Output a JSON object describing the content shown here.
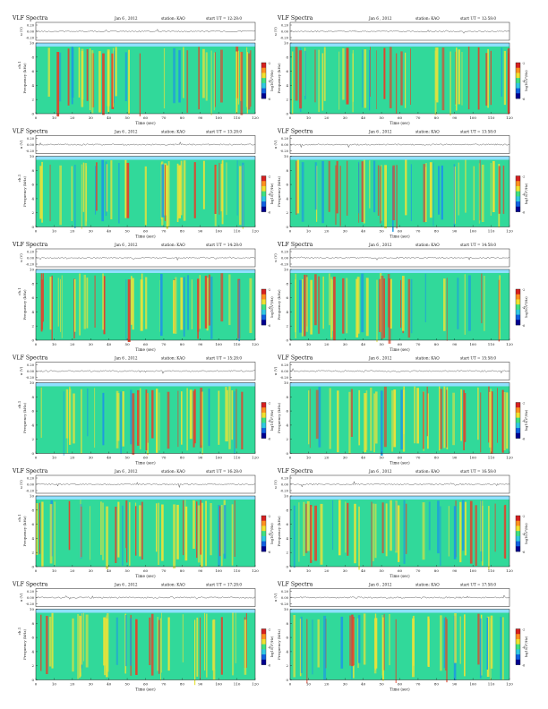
{
  "chart_data": [
    {
      "type": "heatmap",
      "title": "VLF Spectra",
      "date": "Jan 6 , 2012",
      "station": "station: KAO",
      "start": "start UT = 12:28:0",
      "top_ylabel": "u (V)",
      "top_ticks": [
        "0.20",
        "0.00",
        "-0.20"
      ],
      "xlabel": "Time (sec)",
      "ylabel": "Frequency (kHz)",
      "yticks": [
        "0",
        "2",
        "4",
        "6",
        "8",
        "10"
      ],
      "xticks": [
        "0",
        "10",
        "20",
        "30",
        "40",
        "50",
        "60",
        "70",
        "80",
        "90",
        "100",
        "110",
        "120"
      ],
      "xlim": [
        0,
        120
      ],
      "ylim": [
        0,
        10
      ],
      "colorbar_label": "log10(V²/Hz)",
      "colorbar_ticks": [
        "-2",
        "-4",
        "-6"
      ],
      "side_label": "ch.1"
    },
    {
      "type": "heatmap",
      "title": "VLF Spectra",
      "date": "Jan 6 , 2012",
      "station": "station: KAO",
      "start": "start UT = 12:58:0",
      "top_ylabel": "u (V)",
      "top_ticks": [
        "0.20",
        "0.00",
        "-0.20"
      ],
      "xlabel": "Time (sec)",
      "ylabel": "Frequency (kHz)",
      "yticks": [
        "0",
        "2",
        "4",
        "6",
        "8",
        "10"
      ],
      "xticks": [
        "0",
        "10",
        "20",
        "30",
        "40",
        "50",
        "60",
        "70",
        "80",
        "90",
        "100",
        "110",
        "120"
      ],
      "xlim": [
        0,
        120
      ],
      "ylim": [
        0,
        10
      ],
      "colorbar_label": "log10(V²/Hz)",
      "colorbar_ticks": [
        "-2",
        "-4",
        "-6"
      ],
      "side_label": ""
    },
    {
      "type": "heatmap",
      "title": "VLF Spectra",
      "date": "Jan 6 , 2012",
      "station": "station: KAO",
      "start": "start UT = 13:28:0",
      "top_ylabel": "u (V)",
      "top_ticks": [
        "0.20",
        "0.00",
        "-0.20"
      ],
      "xlabel": "Time (sec)",
      "ylabel": "Frequency (kHz)",
      "yticks": [
        "0",
        "2",
        "4",
        "6",
        "8",
        "10"
      ],
      "xticks": [
        "0",
        "10",
        "20",
        "30",
        "40",
        "50",
        "60",
        "70",
        "80",
        "90",
        "100",
        "110",
        "120"
      ],
      "xlim": [
        0,
        120
      ],
      "ylim": [
        0,
        10
      ],
      "colorbar_label": "log10(V²/Hz)",
      "colorbar_ticks": [
        "-2",
        "-4",
        "-6"
      ],
      "side_label": "ch.1"
    },
    {
      "type": "heatmap",
      "title": "VLF Spectra",
      "date": "Jan 6 , 2012",
      "station": "station: KAO",
      "start": "start UT = 13:58:0",
      "top_ylabel": "u (V)",
      "top_ticks": [
        "0.20",
        "0.00",
        "-0.20"
      ],
      "xlabel": "Time (sec)",
      "ylabel": "Frequency (kHz)",
      "yticks": [
        "0",
        "2",
        "4",
        "6",
        "8",
        "10"
      ],
      "xticks": [
        "0",
        "10",
        "20",
        "30",
        "40",
        "50",
        "60",
        "70",
        "80",
        "90",
        "100",
        "110",
        "120"
      ],
      "xlim": [
        0,
        120
      ],
      "ylim": [
        0,
        10
      ],
      "colorbar_label": "log10(V²/Hz)",
      "colorbar_ticks": [
        "-2",
        "-4",
        "-6"
      ],
      "side_label": ""
    },
    {
      "type": "heatmap",
      "title": "VLF Spectra",
      "date": "Jan 6 , 2012",
      "station": "station: KAO",
      "start": "start UT = 14:28:0",
      "top_ylabel": "u (V)",
      "top_ticks": [
        "0.20",
        "0.00",
        "-0.20"
      ],
      "xlabel": "Time (sec)",
      "ylabel": "Frequency (kHz)",
      "yticks": [
        "0",
        "2",
        "4",
        "6",
        "8",
        "10"
      ],
      "xticks": [
        "0",
        "10",
        "20",
        "30",
        "40",
        "50",
        "60",
        "70",
        "80",
        "90",
        "100",
        "110",
        "120"
      ],
      "xlim": [
        0,
        120
      ],
      "ylim": [
        0,
        10
      ],
      "colorbar_label": "log10(V²/Hz)",
      "colorbar_ticks": [
        "-2",
        "-4",
        "-6"
      ],
      "side_label": "ch.1"
    },
    {
      "type": "heatmap",
      "title": "VLF Spectra",
      "date": "Jan 6 , 2012",
      "station": "station: KAO",
      "start": "start UT = 14:58:0",
      "top_ylabel": "u (V)",
      "top_ticks": [
        "0.20",
        "0.00",
        "-0.20"
      ],
      "xlabel": "Time (sec)",
      "ylabel": "Frequency (kHz)",
      "yticks": [
        "0",
        "2",
        "4",
        "6",
        "8",
        "10"
      ],
      "xticks": [
        "0",
        "10",
        "20",
        "30",
        "40",
        "50",
        "60",
        "70",
        "80",
        "90",
        "100",
        "110",
        "120"
      ],
      "xlim": [
        0,
        120
      ],
      "ylim": [
        0,
        10
      ],
      "colorbar_label": "log10(V²/Hz)",
      "colorbar_ticks": [
        "-2",
        "-4",
        "-6"
      ],
      "side_label": ""
    },
    {
      "type": "heatmap",
      "title": "VLF Spectra",
      "date": "Jan 6 , 2012",
      "station": "station: KAO",
      "start": "start UT = 15:28:0",
      "top_ylabel": "u (V)",
      "top_ticks": [
        "0.20",
        "0.00",
        "-0.20"
      ],
      "xlabel": "Time (sec)",
      "ylabel": "Frequency (kHz)",
      "yticks": [
        "0",
        "2",
        "4",
        "6",
        "8",
        "10"
      ],
      "xticks": [
        "0",
        "10",
        "20",
        "30",
        "40",
        "50",
        "60",
        "70",
        "80",
        "90",
        "100",
        "110",
        "120"
      ],
      "xlim": [
        0,
        120
      ],
      "ylim": [
        0,
        10
      ],
      "colorbar_label": "log10(V²/Hz)",
      "colorbar_ticks": [
        "-2",
        "-4",
        "-6"
      ],
      "side_label": "ch.1"
    },
    {
      "type": "heatmap",
      "title": "VLF Spectra",
      "date": "Jan 6 , 2012",
      "station": "station: KAO",
      "start": "start UT = 15:58:0",
      "top_ylabel": "u (V)",
      "top_ticks": [
        "0.20",
        "0.00",
        "-0.20"
      ],
      "xlabel": "Time (sec)",
      "ylabel": "Frequency (kHz)",
      "yticks": [
        "0",
        "2",
        "4",
        "6",
        "8",
        "10"
      ],
      "xticks": [
        "0",
        "10",
        "20",
        "30",
        "40",
        "50",
        "60",
        "70",
        "80",
        "90",
        "100",
        "110",
        "120"
      ],
      "xlim": [
        0,
        120
      ],
      "ylim": [
        0,
        10
      ],
      "colorbar_label": "log10(V²/Hz)",
      "colorbar_ticks": [
        "-2",
        "-4",
        "-6"
      ],
      "side_label": ""
    },
    {
      "type": "heatmap",
      "title": "VLF Spectra",
      "date": "Jan 6 , 2012",
      "station": "station: KAO",
      "start": "start UT = 16:28:0",
      "top_ylabel": "u (V)",
      "top_ticks": [
        "0.20",
        "0.00",
        "-0.20"
      ],
      "xlabel": "Time (sec)",
      "ylabel": "Frequency (kHz)",
      "yticks": [
        "0",
        "2",
        "4",
        "6",
        "8",
        "10"
      ],
      "xticks": [
        "0",
        "10",
        "20",
        "30",
        "40",
        "50",
        "60",
        "70",
        "80",
        "90",
        "100",
        "110",
        "120"
      ],
      "xlim": [
        0,
        120
      ],
      "ylim": [
        0,
        10
      ],
      "colorbar_label": "log10(V²/Hz)",
      "colorbar_ticks": [
        "-2",
        "-4",
        "-6"
      ],
      "side_label": "ch.1"
    },
    {
      "type": "heatmap",
      "title": "VLF Spectra",
      "date": "Jan 6 , 2012",
      "station": "station: KAO",
      "start": "start UT = 16:58:0",
      "top_ylabel": "u (V)",
      "top_ticks": [
        "0.20",
        "0.00",
        "-0.20"
      ],
      "xlabel": "Time (sec)",
      "ylabel": "Frequency (kHz)",
      "yticks": [
        "0",
        "2",
        "4",
        "6",
        "8",
        "10"
      ],
      "xticks": [
        "0",
        "10",
        "20",
        "30",
        "40",
        "50",
        "60",
        "70",
        "80",
        "90",
        "100",
        "110",
        "120"
      ],
      "xlim": [
        0,
        120
      ],
      "ylim": [
        0,
        10
      ],
      "colorbar_label": "log10(V²/Hz)",
      "colorbar_ticks": [
        "-2",
        "-4",
        "-6"
      ],
      "side_label": ""
    },
    {
      "type": "heatmap",
      "title": "VLF Spectra",
      "date": "Jan 6 , 2012",
      "station": "station: KAO",
      "start": "start UT = 17:28:0",
      "top_ylabel": "u (V)",
      "top_ticks": [
        "0.20",
        "0.00",
        "-0.20"
      ],
      "xlabel": "Time (sec)",
      "ylabel": "Frequency (kHz)",
      "yticks": [
        "0",
        "2",
        "4",
        "6",
        "8",
        "10"
      ],
      "xticks": [
        "0",
        "10",
        "20",
        "30",
        "40",
        "50",
        "60",
        "70",
        "80",
        "90",
        "100",
        "110",
        "120"
      ],
      "xlim": [
        0,
        120
      ],
      "ylim": [
        0,
        10
      ],
      "colorbar_label": "log10(V²/Hz)",
      "colorbar_ticks": [
        "-2",
        "-4",
        "-6"
      ],
      "side_label": "ch.1"
    },
    {
      "type": "heatmap",
      "title": "VLF Spectra",
      "date": "Jan 6 , 2012",
      "station": "station: KAO",
      "start": "start UT = 17:58:0",
      "top_ylabel": "u (V)",
      "top_ticks": [
        "0.20",
        "0.00",
        "-0.20"
      ],
      "xlabel": "Time (sec)",
      "ylabel": "Frequency (kHz)",
      "yticks": [
        "0",
        "2",
        "4",
        "6",
        "8",
        "10"
      ],
      "xticks": [
        "0",
        "10",
        "20",
        "30",
        "40",
        "50",
        "60",
        "70",
        "80",
        "90",
        "100",
        "110",
        "120"
      ],
      "xlim": [
        0,
        120
      ],
      "ylim": [
        0,
        10
      ],
      "colorbar_label": "log10(V²/Hz)",
      "colorbar_ticks": [
        "-2",
        "-4",
        "-6"
      ],
      "side_label": ""
    }
  ],
  "colors": {
    "background": "#2fd0c0",
    "active": "#33e07a",
    "burst": "#e7e23a",
    "peak": "#e0442c",
    "low": "#1e9be0",
    "quiet": "#8fe0ff"
  }
}
